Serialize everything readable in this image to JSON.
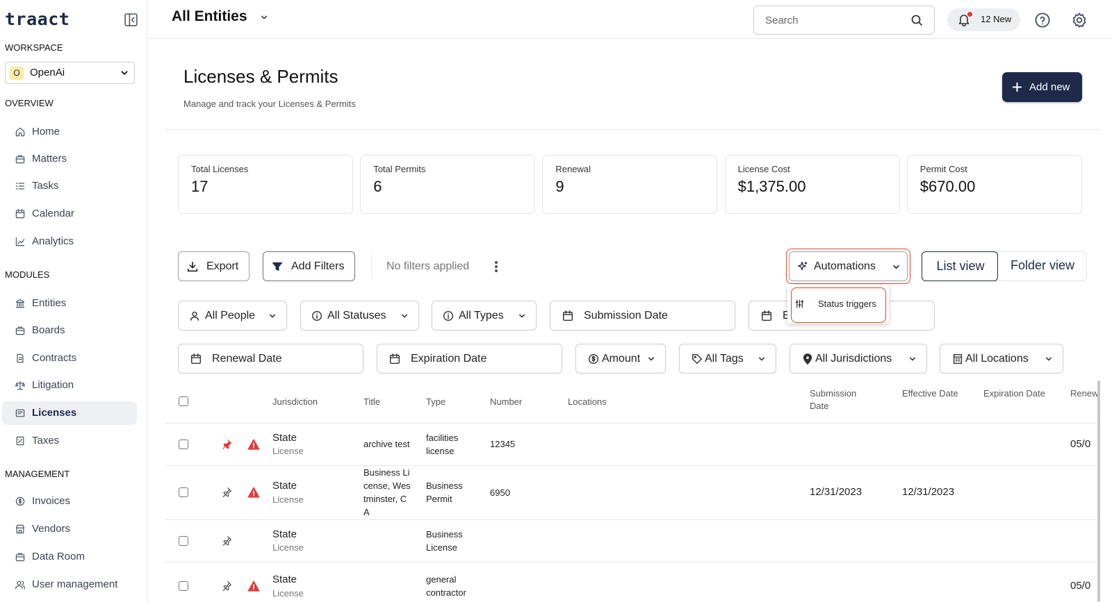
{
  "brand": "traact",
  "sidebar": {
    "workspace_label": "WORKSPACE",
    "workspace": {
      "initial": "O",
      "name": "OpenAi"
    },
    "sections": [
      {
        "title": "OVERVIEW",
        "items": [
          {
            "label": "Home"
          },
          {
            "label": "Matters"
          },
          {
            "label": "Tasks"
          },
          {
            "label": "Calendar"
          },
          {
            "label": "Analytics"
          }
        ]
      },
      {
        "title": "MODULES",
        "items": [
          {
            "label": "Entities"
          },
          {
            "label": "Boards"
          },
          {
            "label": "Contracts"
          },
          {
            "label": "Litigation"
          },
          {
            "label": "Licenses",
            "active": true
          },
          {
            "label": "Taxes"
          }
        ]
      },
      {
        "title": "MANAGEMENT",
        "items": [
          {
            "label": "Invoices"
          },
          {
            "label": "Vendors"
          },
          {
            "label": "Data Room"
          },
          {
            "label": "User management"
          }
        ]
      }
    ]
  },
  "header": {
    "scope": "All Entities",
    "search_placeholder": "Search",
    "notifications": "12 New"
  },
  "page": {
    "title": "Licenses & Permits",
    "subtitle": "Manage and track your Licenses & Permits",
    "add_button": "Add new"
  },
  "stats": [
    {
      "label": "Total Licenses",
      "value": "17"
    },
    {
      "label": "Total Permits",
      "value": "6"
    },
    {
      "label": "Renewal",
      "value": "9"
    },
    {
      "label": "License Cost",
      "value": "$1,375.00"
    },
    {
      "label": "Permit Cost",
      "value": "$670.00"
    }
  ],
  "toolbar": {
    "export": "Export",
    "add_filters": "Add Filters",
    "filter_status": "No filters applied",
    "automations": "Automations",
    "automations_menu": [
      "Status triggers"
    ],
    "views": [
      "List view",
      "Folder view"
    ]
  },
  "filters": [
    "All People",
    "All Statuses",
    "All Types",
    "Submission Date",
    "E",
    "Renewal Date",
    "Expiration Date",
    "Amount",
    "All Tags",
    "All Jurisdictions",
    "All Locations"
  ],
  "table": {
    "columns": [
      "Jurisdiction",
      "Title",
      "Type",
      "Number",
      "Locations",
      "Submission Date",
      "Effective Date",
      "Expiration Date",
      "Renewal Date"
    ],
    "rows": [
      {
        "pinned": true,
        "warning": true,
        "jurisdiction": "State",
        "kind": "License",
        "title": "archive test",
        "type": "facilities license",
        "number": "12345",
        "renewal": "05/0"
      },
      {
        "pinned": false,
        "warning": true,
        "jurisdiction": "State",
        "kind": "License",
        "title": "Business License, Westminster, CA",
        "type": "Business Permit",
        "number": "6950",
        "submission": "12/31/2023",
        "effective": "12/31/2023"
      },
      {
        "pinned": false,
        "warning": false,
        "jurisdiction": "State",
        "kind": "License",
        "type": "Business License"
      },
      {
        "pinned": false,
        "warning": true,
        "jurisdiction": "State",
        "kind": "License",
        "type": "general contractor",
        "renewal": "05/0"
      }
    ]
  }
}
